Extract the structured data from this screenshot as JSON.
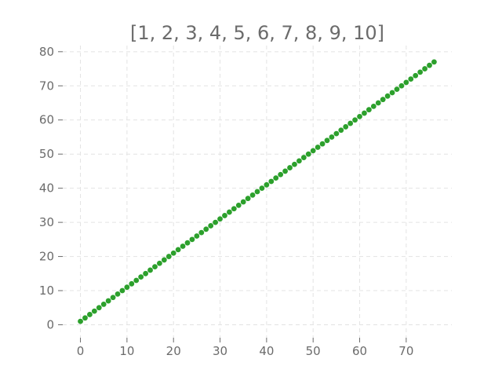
{
  "chart_data": {
    "type": "scatter",
    "title": "[1, 2, 3, 4, 5, 6, 7, 8, 9, 10]",
    "xlabel": "",
    "ylabel": "",
    "x": [
      0,
      1,
      2,
      3,
      4,
      5,
      6,
      7,
      8,
      9,
      10,
      11,
      12,
      13,
      14,
      15,
      16,
      17,
      18,
      19,
      20,
      21,
      22,
      23,
      24,
      25,
      26,
      27,
      28,
      29,
      30,
      31,
      32,
      33,
      34,
      35,
      36,
      37,
      38,
      39,
      40,
      41,
      42,
      43,
      44,
      45,
      46,
      47,
      48,
      49,
      50,
      51,
      52,
      53,
      54,
      55,
      56,
      57,
      58,
      59,
      60,
      61,
      62,
      63,
      64,
      65,
      66,
      67,
      68,
      69,
      70,
      71,
      72,
      73,
      74,
      75,
      76
    ],
    "y": [
      1,
      2,
      3,
      4,
      5,
      6,
      7,
      8,
      9,
      10,
      11,
      12,
      13,
      14,
      15,
      16,
      17,
      18,
      19,
      20,
      21,
      22,
      23,
      24,
      25,
      26,
      27,
      28,
      29,
      30,
      31,
      32,
      33,
      34,
      35,
      36,
      37,
      38,
      39,
      40,
      41,
      42,
      43,
      44,
      45,
      46,
      47,
      48,
      49,
      50,
      51,
      52,
      53,
      54,
      55,
      56,
      57,
      58,
      59,
      60,
      61,
      62,
      63,
      64,
      65,
      66,
      67,
      68,
      69,
      70,
      71,
      72,
      73,
      74,
      75,
      76,
      77
    ],
    "xlim": [
      -3.8,
      79.8
    ],
    "ylim": [
      -3.8,
      81.8
    ],
    "xticks": [
      0,
      10,
      20,
      30,
      40,
      50,
      60,
      70
    ],
    "yticks": [
      0,
      10,
      20,
      30,
      40,
      50,
      60,
      70,
      80
    ],
    "grid": true,
    "colors": {
      "point": "#2ca02c",
      "text": "#6b6b6b",
      "grid": "#e3e3e3"
    }
  }
}
